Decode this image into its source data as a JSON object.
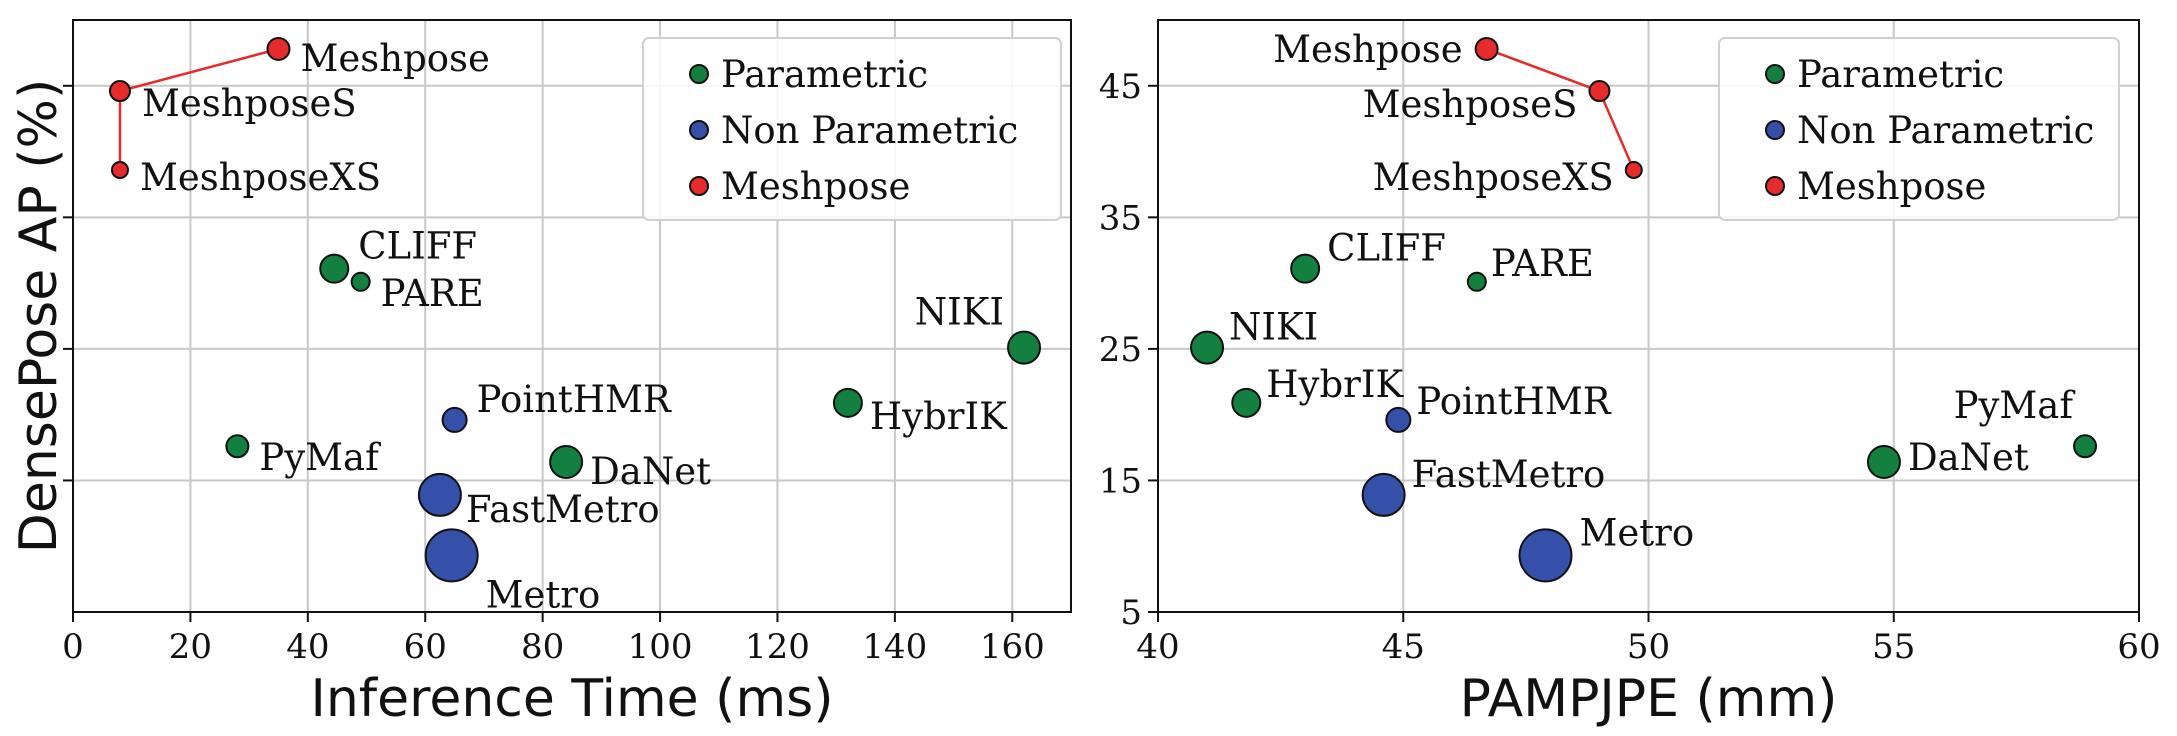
{
  "colors": {
    "Parametric": "#138040",
    "Non Parametric": "#3450a8",
    "Meshpose": "#e52b2b",
    "grid": "#c8c8c8",
    "line": "#e52b2b"
  },
  "chart_data": [
    {
      "type": "scatter",
      "xlabel": "Inference Time (ms)",
      "ylabel": "DensePose AP (%)",
      "xlim": [
        0,
        170
      ],
      "ylim": [
        5,
        50
      ],
      "xticks": [
        0,
        20,
        40,
        60,
        80,
        100,
        120,
        140,
        160
      ],
      "yticks": [
        15,
        25,
        35,
        45
      ],
      "ytick_labels_shown": false,
      "grid": true,
      "legend": {
        "placement": "top-right",
        "entries": [
          "Parametric",
          "Non Parametric",
          "Meshpose"
        ]
      },
      "points": [
        {
          "label": "Meshpose",
          "x": 35,
          "y": 47.8,
          "group": "Meshpose",
          "r": 11
        },
        {
          "label": "MeshposeS",
          "x": 8,
          "y": 44.6,
          "group": "Meshpose",
          "r": 10
        },
        {
          "label": "MeshposeXS",
          "x": 8,
          "y": 38.6,
          "group": "Meshpose",
          "r": 8
        },
        {
          "label": "CLIFF",
          "x": 44.5,
          "y": 31.1,
          "group": "Parametric",
          "r": 14
        },
        {
          "label": "PARE",
          "x": 49,
          "y": 30.1,
          "group": "Parametric",
          "r": 9
        },
        {
          "label": "NIKI",
          "x": 162,
          "y": 25.1,
          "group": "Parametric",
          "r": 16
        },
        {
          "label": "HybrIK",
          "x": 132,
          "y": 20.9,
          "group": "Parametric",
          "r": 14
        },
        {
          "label": "PointHMR",
          "x": 65,
          "y": 19.6,
          "group": "Non Parametric",
          "r": 12
        },
        {
          "label": "PyMaf",
          "x": 28,
          "y": 17.6,
          "group": "Parametric",
          "r": 11
        },
        {
          "label": "DaNet",
          "x": 84,
          "y": 16.4,
          "group": "Parametric",
          "r": 16
        },
        {
          "label": "FastMetro",
          "x": 62.5,
          "y": 13.9,
          "group": "Non Parametric",
          "r": 21
        },
        {
          "label": "Metro",
          "x": 64.5,
          "y": 9.3,
          "group": "Non Parametric",
          "r": 26
        }
      ],
      "connected": [
        "MeshposeXS",
        "MeshposeS",
        "Meshpose"
      ]
    },
    {
      "type": "scatter",
      "xlabel": "PAMPJPE (mm)",
      "ylabel": "",
      "xlim": [
        40,
        60
      ],
      "ylim": [
        5,
        50
      ],
      "xticks": [
        40,
        45,
        50,
        55,
        60
      ],
      "yticks": [
        5,
        15,
        25,
        35,
        45
      ],
      "ytick_labels_shown": true,
      "grid": true,
      "legend": {
        "placement": "top-right",
        "entries": [
          "Parametric",
          "Non Parametric",
          "Meshpose"
        ]
      },
      "points": [
        {
          "label": "Meshpose",
          "x": 46.7,
          "y": 47.8,
          "group": "Meshpose",
          "r": 11
        },
        {
          "label": "MeshposeS",
          "x": 49,
          "y": 44.6,
          "group": "Meshpose",
          "r": 10
        },
        {
          "label": "MeshposeXS",
          "x": 49.7,
          "y": 38.6,
          "group": "Meshpose",
          "r": 8
        },
        {
          "label": "CLIFF",
          "x": 43,
          "y": 31.1,
          "group": "Parametric",
          "r": 14
        },
        {
          "label": "PARE",
          "x": 46.5,
          "y": 30.1,
          "group": "Parametric",
          "r": 9
        },
        {
          "label": "NIKI",
          "x": 41,
          "y": 25.1,
          "group": "Parametric",
          "r": 16
        },
        {
          "label": "HybrIK",
          "x": 41.8,
          "y": 20.9,
          "group": "Parametric",
          "r": 14
        },
        {
          "label": "PointHMR",
          "x": 44.9,
          "y": 19.6,
          "group": "Non Parametric",
          "r": 12
        },
        {
          "label": "PyMaf",
          "x": 58.9,
          "y": 17.6,
          "group": "Parametric",
          "r": 11
        },
        {
          "label": "DaNet",
          "x": 54.8,
          "y": 16.4,
          "group": "Parametric",
          "r": 16
        },
        {
          "label": "FastMetro",
          "x": 44.6,
          "y": 13.9,
          "group": "Non Parametric",
          "r": 21
        },
        {
          "label": "Metro",
          "x": 47.9,
          "y": 9.3,
          "group": "Non Parametric",
          "r": 26
        }
      ],
      "connected": [
        "Meshpose",
        "MeshposeS",
        "MeshposeXS"
      ]
    }
  ]
}
